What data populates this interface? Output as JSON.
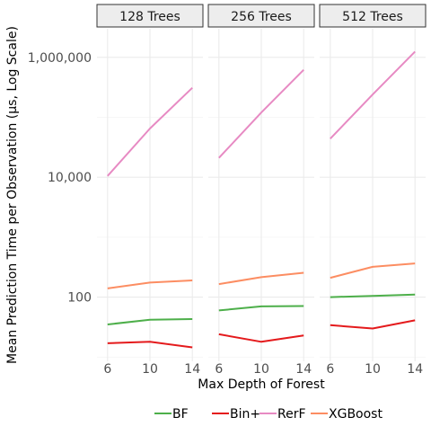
{
  "chart_data": {
    "type": "line",
    "facet_by": "Number of Trees",
    "panels": [
      {
        "label": "128 Trees",
        "series": [
          {
            "name": "BF",
            "x": [
              6,
              10,
              14
            ],
            "y": [
              35,
              42,
              43
            ]
          },
          {
            "name": "Bin+",
            "x": [
              6,
              10,
              14
            ],
            "y": [
              17,
              18,
              14.5
            ]
          },
          {
            "name": "RerF",
            "x": [
              6,
              10,
              14
            ],
            "y": [
              10500,
              65000,
              310000
            ]
          },
          {
            "name": "XGBoost",
            "x": [
              6,
              10,
              14
            ],
            "y": [
              140,
              175,
              190
            ]
          }
        ]
      },
      {
        "label": "256 Trees",
        "series": [
          {
            "name": "BF",
            "x": [
              6,
              10,
              14
            ],
            "y": [
              60,
              70,
              71
            ]
          },
          {
            "name": "Bin+",
            "x": [
              6,
              10,
              14
            ],
            "y": [
              24,
              18,
              23
            ]
          },
          {
            "name": "RerF",
            "x": [
              6,
              10,
              14
            ],
            "y": [
              21000,
              120000,
              620000
            ]
          },
          {
            "name": "XGBoost",
            "x": [
              6,
              10,
              14
            ],
            "y": [
              165,
              215,
              255
            ]
          }
        ]
      },
      {
        "label": "512 Trees",
        "series": [
          {
            "name": "BF",
            "x": [
              6,
              10,
              14
            ],
            "y": [
              100,
              105,
              110
            ]
          },
          {
            "name": "Bin+",
            "x": [
              6,
              10,
              14
            ],
            "y": [
              34,
              30,
              41
            ]
          },
          {
            "name": "RerF",
            "x": [
              6,
              10,
              14
            ],
            "y": [
              44000,
              240000,
              1250000
            ]
          },
          {
            "name": "XGBoost",
            "x": [
              6,
              10,
              14
            ],
            "y": [
              210,
              320,
              365
            ]
          }
        ]
      }
    ],
    "xlabel": "Max Depth of Forest",
    "ylabel": "Mean Prediction Time per Observation (µs, Log Scale)",
    "x_ticks": [
      6,
      10,
      14
    ],
    "x_tick_labels": [
      "6",
      "10",
      "14"
    ],
    "xlim": [
      5,
      15
    ],
    "y_scale": "log",
    "y_ticks": [
      100,
      10000,
      1000000
    ],
    "y_tick_labels": [
      "100",
      "10,000",
      "1,000,000"
    ],
    "ylim": [
      8.5,
      3000000
    ],
    "grid": true,
    "legend": {
      "placement": "bottom",
      "entries": [
        {
          "name": "BF",
          "color": "#4DAF4A"
        },
        {
          "name": "Bin+",
          "color": "#E41A1C"
        },
        {
          "name": "RerF",
          "color": "#E78AC3"
        },
        {
          "name": "XGBoost",
          "color": "#FC8D62"
        }
      ]
    }
  }
}
